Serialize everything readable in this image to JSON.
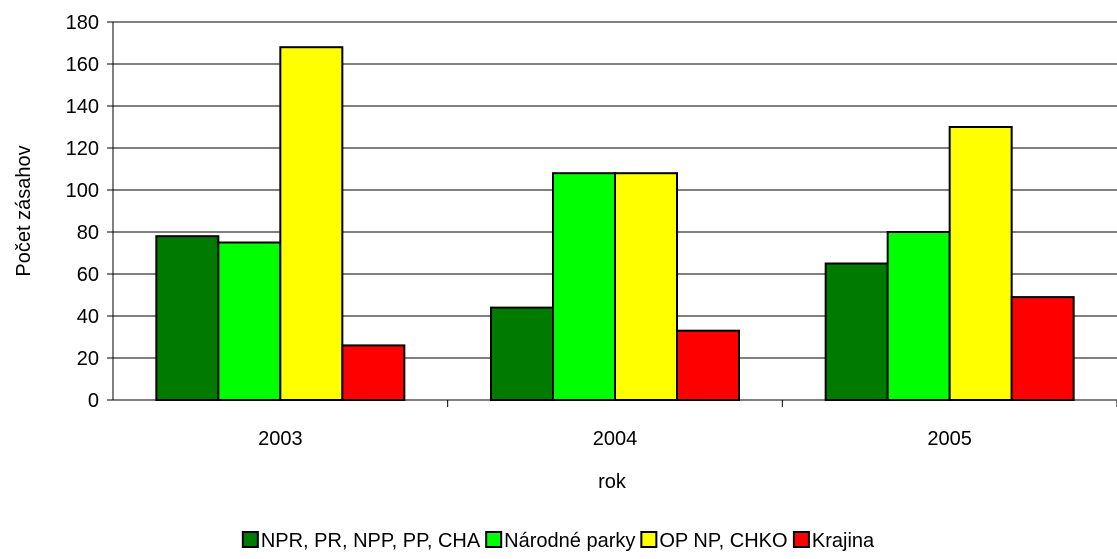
{
  "chart_data": {
    "type": "bar",
    "categories": [
      "2003",
      "2004",
      "2005"
    ],
    "series": [
      {
        "name": "NPR, PR, NPP, PP, CHA",
        "color": "#007A00",
        "values": [
          78,
          44,
          65
        ]
      },
      {
        "name": "Národné parky",
        "color": "#00FF00",
        "values": [
          75,
          108,
          80
        ]
      },
      {
        "name": "OP NP, CHKO",
        "color": "#FFFF00",
        "values": [
          168,
          108,
          130
        ]
      },
      {
        "name": "Krajina",
        "color": "#FF0000",
        "values": [
          26,
          33,
          49
        ]
      }
    ],
    "title": "",
    "xlabel": "rok",
    "ylabel": "Počet zásahov",
    "ylim": [
      0,
      180
    ],
    "yticks": [
      0,
      20,
      40,
      60,
      80,
      100,
      120,
      140,
      160,
      180
    ],
    "grid": true,
    "legend": "bottom"
  }
}
